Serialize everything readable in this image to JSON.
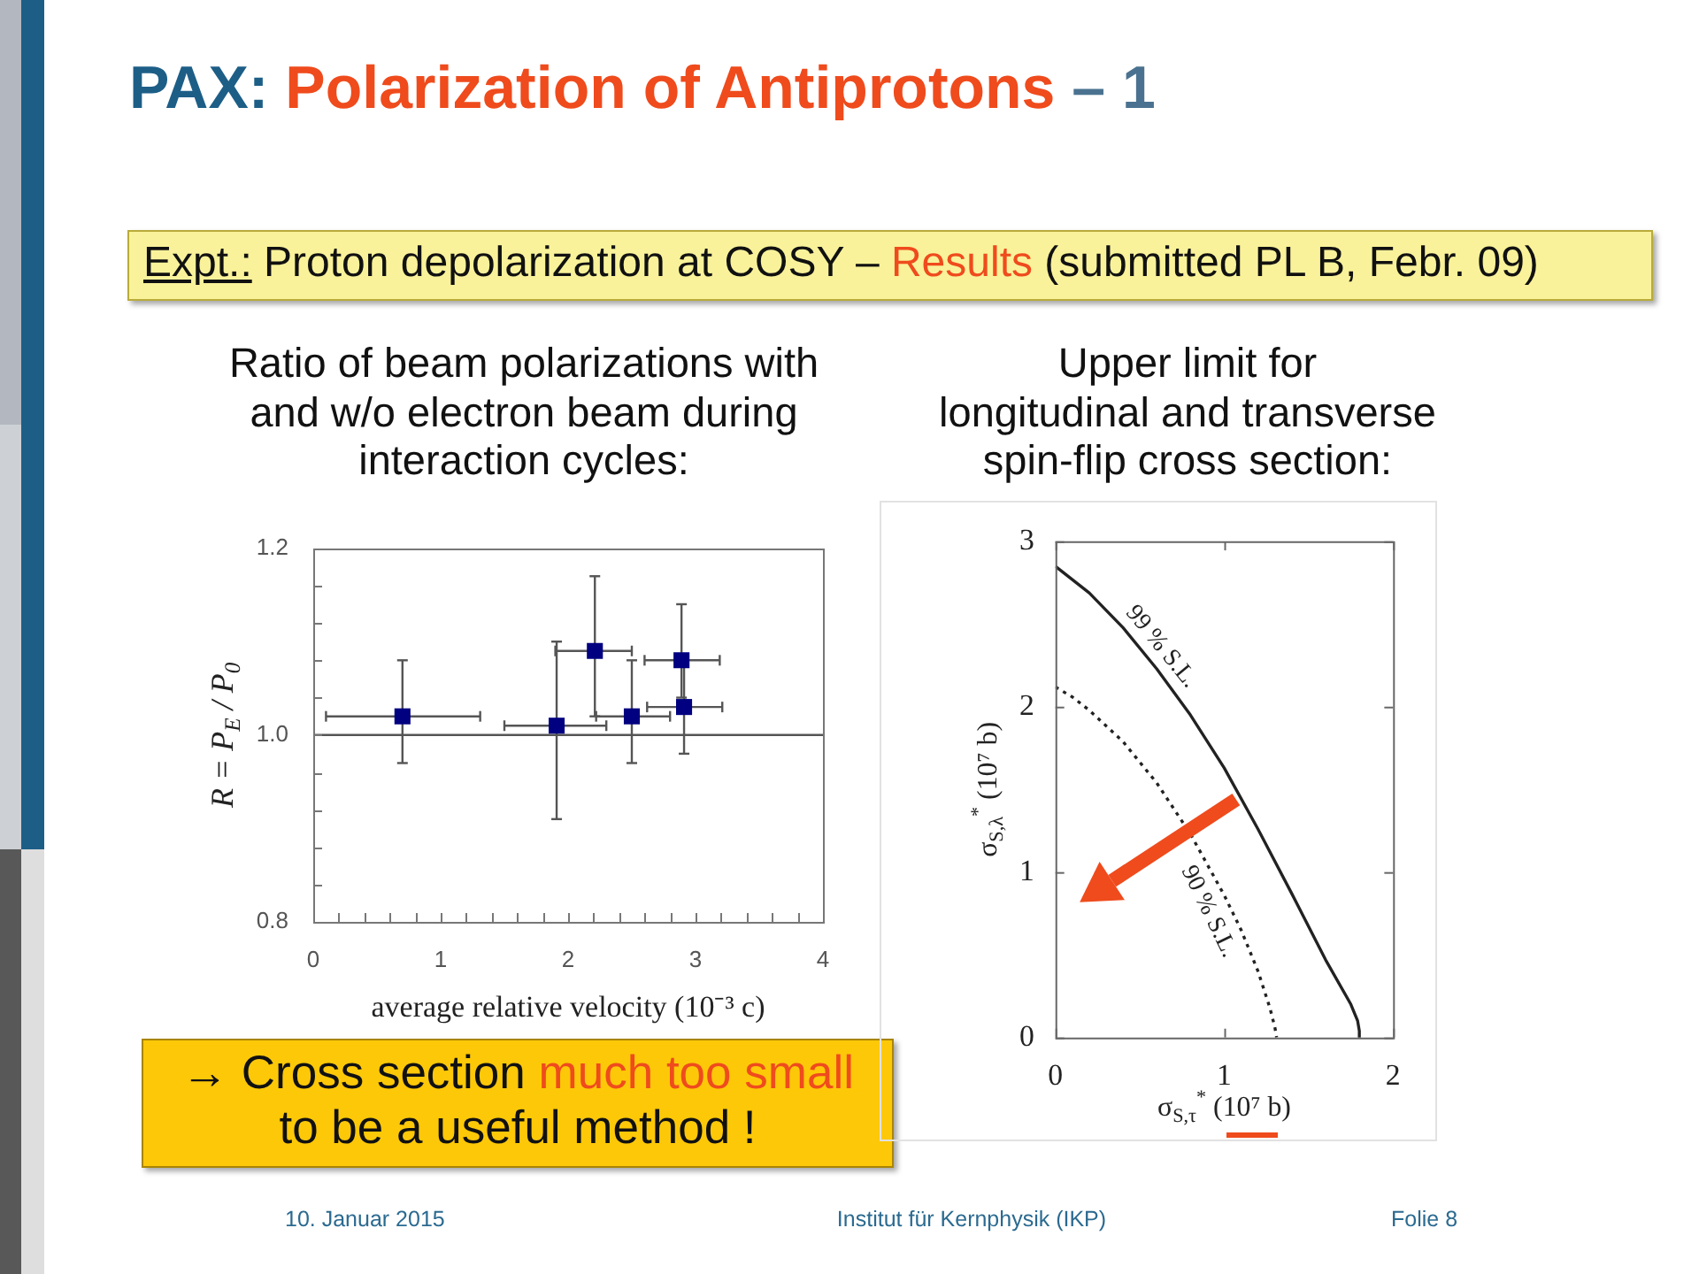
{
  "chart_data": [
    {
      "type": "scatter",
      "title": "Ratio of beam polarizations with\nand w/o electron beam during\ninteraction cycles:",
      "xlabel": "average relative velocity (10⁻³ c)",
      "ylabel": "R = P$_{E}$ / P$_{0}$",
      "x": [
        0.7,
        1.91,
        2.21,
        2.5,
        2.89,
        2.91
      ],
      "values": [
        1.02,
        1.01,
        1.09,
        1.02,
        1.08,
        1.03
      ],
      "errors": [
        [
          0.97,
          1.08
        ],
        [
          0.91,
          1.1
        ],
        [
          1.02,
          1.17
        ],
        [
          0.97,
          1.08
        ],
        [
          1.04,
          1.14
        ],
        [
          0.98,
          1.08
        ]
      ],
      "xerrors": [
        [
          0.1,
          1.31
        ],
        [
          1.5,
          2.3
        ],
        [
          1.9,
          2.5
        ],
        [
          2.22,
          2.8
        ],
        [
          2.6,
          3.19
        ],
        [
          2.62,
          3.21
        ]
      ],
      "color": "#000080",
      "marker": "square",
      "xlim": [
        0,
        4
      ],
      "xticks": [
        0,
        {
          "value": 0.2,
          "label": null
        },
        {
          "value": 0.4,
          "label": null
        },
        {
          "value": 0.6,
          "label": null
        },
        {
          "value": 0.8,
          "label": null
        },
        1,
        {
          "value": 1.2,
          "label": null
        },
        {
          "value": 1.4,
          "label": null
        },
        {
          "value": 1.6,
          "label": null
        },
        {
          "value": 1.8,
          "label": null
        },
        2,
        {
          "value": 2.2,
          "label": null
        },
        {
          "value": 2.4,
          "label": null
        },
        {
          "value": 2.6,
          "label": null
        },
        {
          "value": 2.8,
          "label": null
        },
        3,
        {
          "value": 3.2,
          "label": null
        },
        {
          "value": 3.4,
          "label": null
        },
        {
          "value": 3.6,
          "label": null
        },
        {
          "value": 3.8,
          "label": null
        },
        4
      ],
      "ylim": [
        0.8,
        1.2
      ],
      "yticks": [
        0.8,
        {
          "value": 0.84,
          "label": null
        },
        {
          "value": 0.88,
          "label": null
        },
        {
          "value": 0.92,
          "label": null
        },
        {
          "value": 0.96,
          "label": null
        },
        {
          "value": 1.0,
          "label": "1.0"
        },
        {
          "value": 1.04,
          "label": null
        },
        {
          "value": 1.08,
          "label": null
        },
        {
          "value": 1.12,
          "label": null
        },
        {
          "value": 1.16,
          "label": null
        },
        1.2
      ],
      "ref_lines": [
        {
          "axis": "y",
          "value": 1.0,
          "color": "#555555"
        }
      ],
      "annotations": [
        "PAX:",
        "Polarization of Antiprotons",
        "– 1",
        "Expt.:",
        "Proton depolarization at COSY –",
        "Results",
        "(submitted PL B, Febr. 09)",
        "→ Cross section",
        "much too small",
        "to be a useful method !",
        "10. Januar 2015",
        "Institut für Kernphysik (IKP)",
        "Folie 8"
      ]
    },
    {
      "type": "line",
      "title": "Upper limit for\nlongitudinal and transverse\nspin-flip cross section:",
      "xlabel": "σ$_{S,τ}$$^{*}$ (10⁷ b)",
      "ylabel": "σ$_{S,λ}$$^{*}$ (10⁷ b)",
      "series": [
        {
          "name": "99 % S.L.",
          "color": "#222222",
          "line_style": "solid",
          "x": [
            0,
            0.2,
            0.4,
            0.6,
            0.8,
            1.0,
            1.2,
            1.4,
            1.6,
            1.75,
            1.79,
            1.8,
            1.8
          ],
          "values": [
            2.85,
            2.69,
            2.48,
            2.23,
            1.95,
            1.63,
            1.26,
            0.87,
            0.47,
            0.2,
            0.1,
            0.04,
            0
          ]
        },
        {
          "name": "90 % S.L.",
          "color": "#222222",
          "line_style": "dotted",
          "x": [
            0,
            0.1,
            0.2,
            0.4,
            0.6,
            0.8,
            1.0,
            1.1,
            1.2,
            1.27,
            1.3,
            1.31
          ],
          "values": [
            2.12,
            2.06,
            1.98,
            1.79,
            1.54,
            1.23,
            0.86,
            0.65,
            0.4,
            0.18,
            0.06,
            0
          ]
        }
      ],
      "marker": "none",
      "xlim": [
        0,
        2
      ],
      "xticks": [
        0,
        1,
        2
      ],
      "ylim": [
        0,
        3
      ],
      "yticks": [
        0,
        1,
        2,
        3
      ]
    }
  ]
}
